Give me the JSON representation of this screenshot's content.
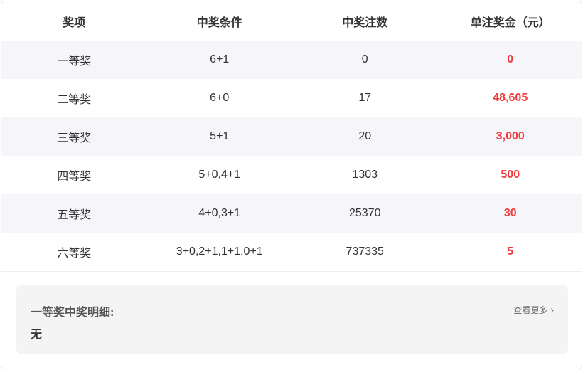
{
  "table": {
    "headers": [
      "奖项",
      "中奖条件",
      "中奖注数",
      "单注奖金（元）"
    ],
    "rows": [
      [
        "一等奖",
        "6+1",
        "0",
        "0"
      ],
      [
        "二等奖",
        "6+0",
        "17",
        "48,605"
      ],
      [
        "三等奖",
        "5+1",
        "20",
        "3,000"
      ],
      [
        "四等奖",
        "5+0,4+1",
        "1303",
        "500"
      ],
      [
        "五等奖",
        "4+0,3+1",
        "25370",
        "30"
      ],
      [
        "六等奖",
        "3+0,2+1,1+1,0+1",
        "737335",
        "5"
      ]
    ]
  },
  "detail": {
    "title": "一等奖中奖明细:",
    "value": "无",
    "more_label": "查看更多",
    "more_icon": "chevron-right-icon"
  },
  "colors": {
    "prize": "#f03c3c",
    "stripe": "#f5f5fa"
  }
}
